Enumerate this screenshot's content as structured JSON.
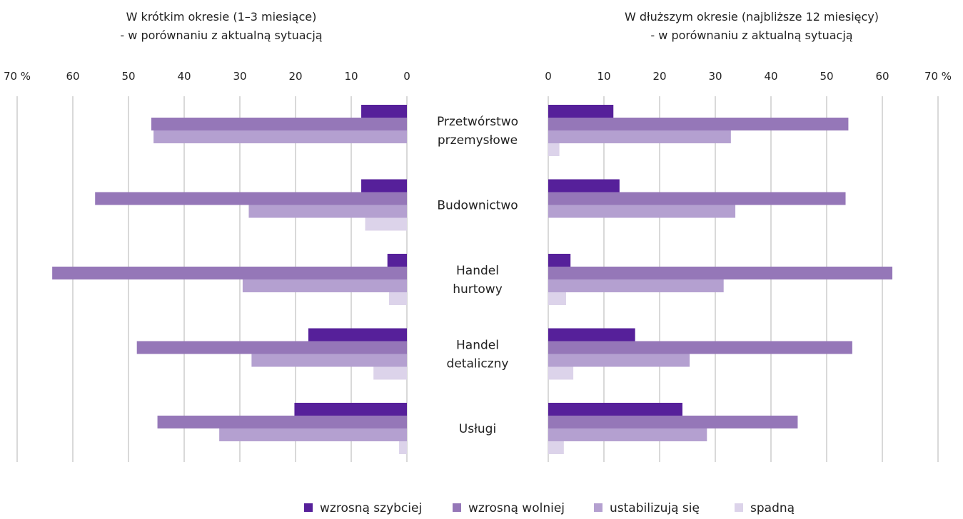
{
  "chart_data": {
    "type": "bar",
    "orientation": "horizontal",
    "categories": [
      "Przetwórstwo\nprzemysłowe",
      "Budownictwo",
      "Handel\nhurtowy",
      "Handel\ndetaliczny",
      "Usługi"
    ],
    "unit": "%",
    "legend_placement": "bottom",
    "colors": [
      "#56209a",
      "#9577b8",
      "#b4a0d0",
      "#dcd3ea"
    ],
    "series_names": [
      "wzrosną szybciej",
      "wzrosną wolniej",
      "ustabilizują się",
      "spadną"
    ],
    "ticks": [
      0,
      10,
      20,
      30,
      40,
      50,
      60,
      70
    ],
    "tick_labels_left": [
      "0",
      "10",
      "20",
      "30",
      "40",
      "50",
      "60",
      "70 %"
    ],
    "tick_labels_right": [
      "0",
      "10",
      "20",
      "30",
      "40",
      "50",
      "60",
      "70 %"
    ],
    "panels": [
      {
        "title_lines": [
          "W krótkim okresie (1–3 miesiące)",
          "- w porównaniu z aktualną sytuacją"
        ],
        "xlim": [
          0,
          70
        ],
        "grid": true,
        "series": [
          {
            "name": "wzrosną szybciej",
            "values": [
              8.2,
              8.2,
              3.5,
              17.7,
              20.2
            ]
          },
          {
            "name": "wzrosną wolniej",
            "values": [
              45.9,
              56.0,
              63.7,
              48.5,
              44.8
            ]
          },
          {
            "name": "ustabilizują się",
            "values": [
              45.5,
              28.4,
              29.5,
              27.9,
              33.7
            ]
          },
          {
            "name": "spadną",
            "values": [
              0.0,
              7.5,
              3.2,
              6.0,
              1.4
            ]
          }
        ]
      },
      {
        "title_lines": [
          "W dłuższym okresie (najbliższe 12 miesięcy)",
          "- w porównaniu z aktualną sytuacją"
        ],
        "xlim": [
          0,
          70
        ],
        "grid": true,
        "series": [
          {
            "name": "wzrosną szybciej",
            "values": [
              11.7,
              12.8,
              4.0,
              15.6,
              24.1
            ]
          },
          {
            "name": "wzrosną wolniej",
            "values": [
              53.9,
              53.4,
              61.8,
              54.6,
              44.8
            ]
          },
          {
            "name": "ustabilizują się",
            "values": [
              32.8,
              33.6,
              31.5,
              25.4,
              28.5
            ]
          },
          {
            "name": "spadną",
            "values": [
              2.0,
              0.0,
              3.2,
              4.5,
              2.8
            ]
          }
        ]
      }
    ]
  }
}
